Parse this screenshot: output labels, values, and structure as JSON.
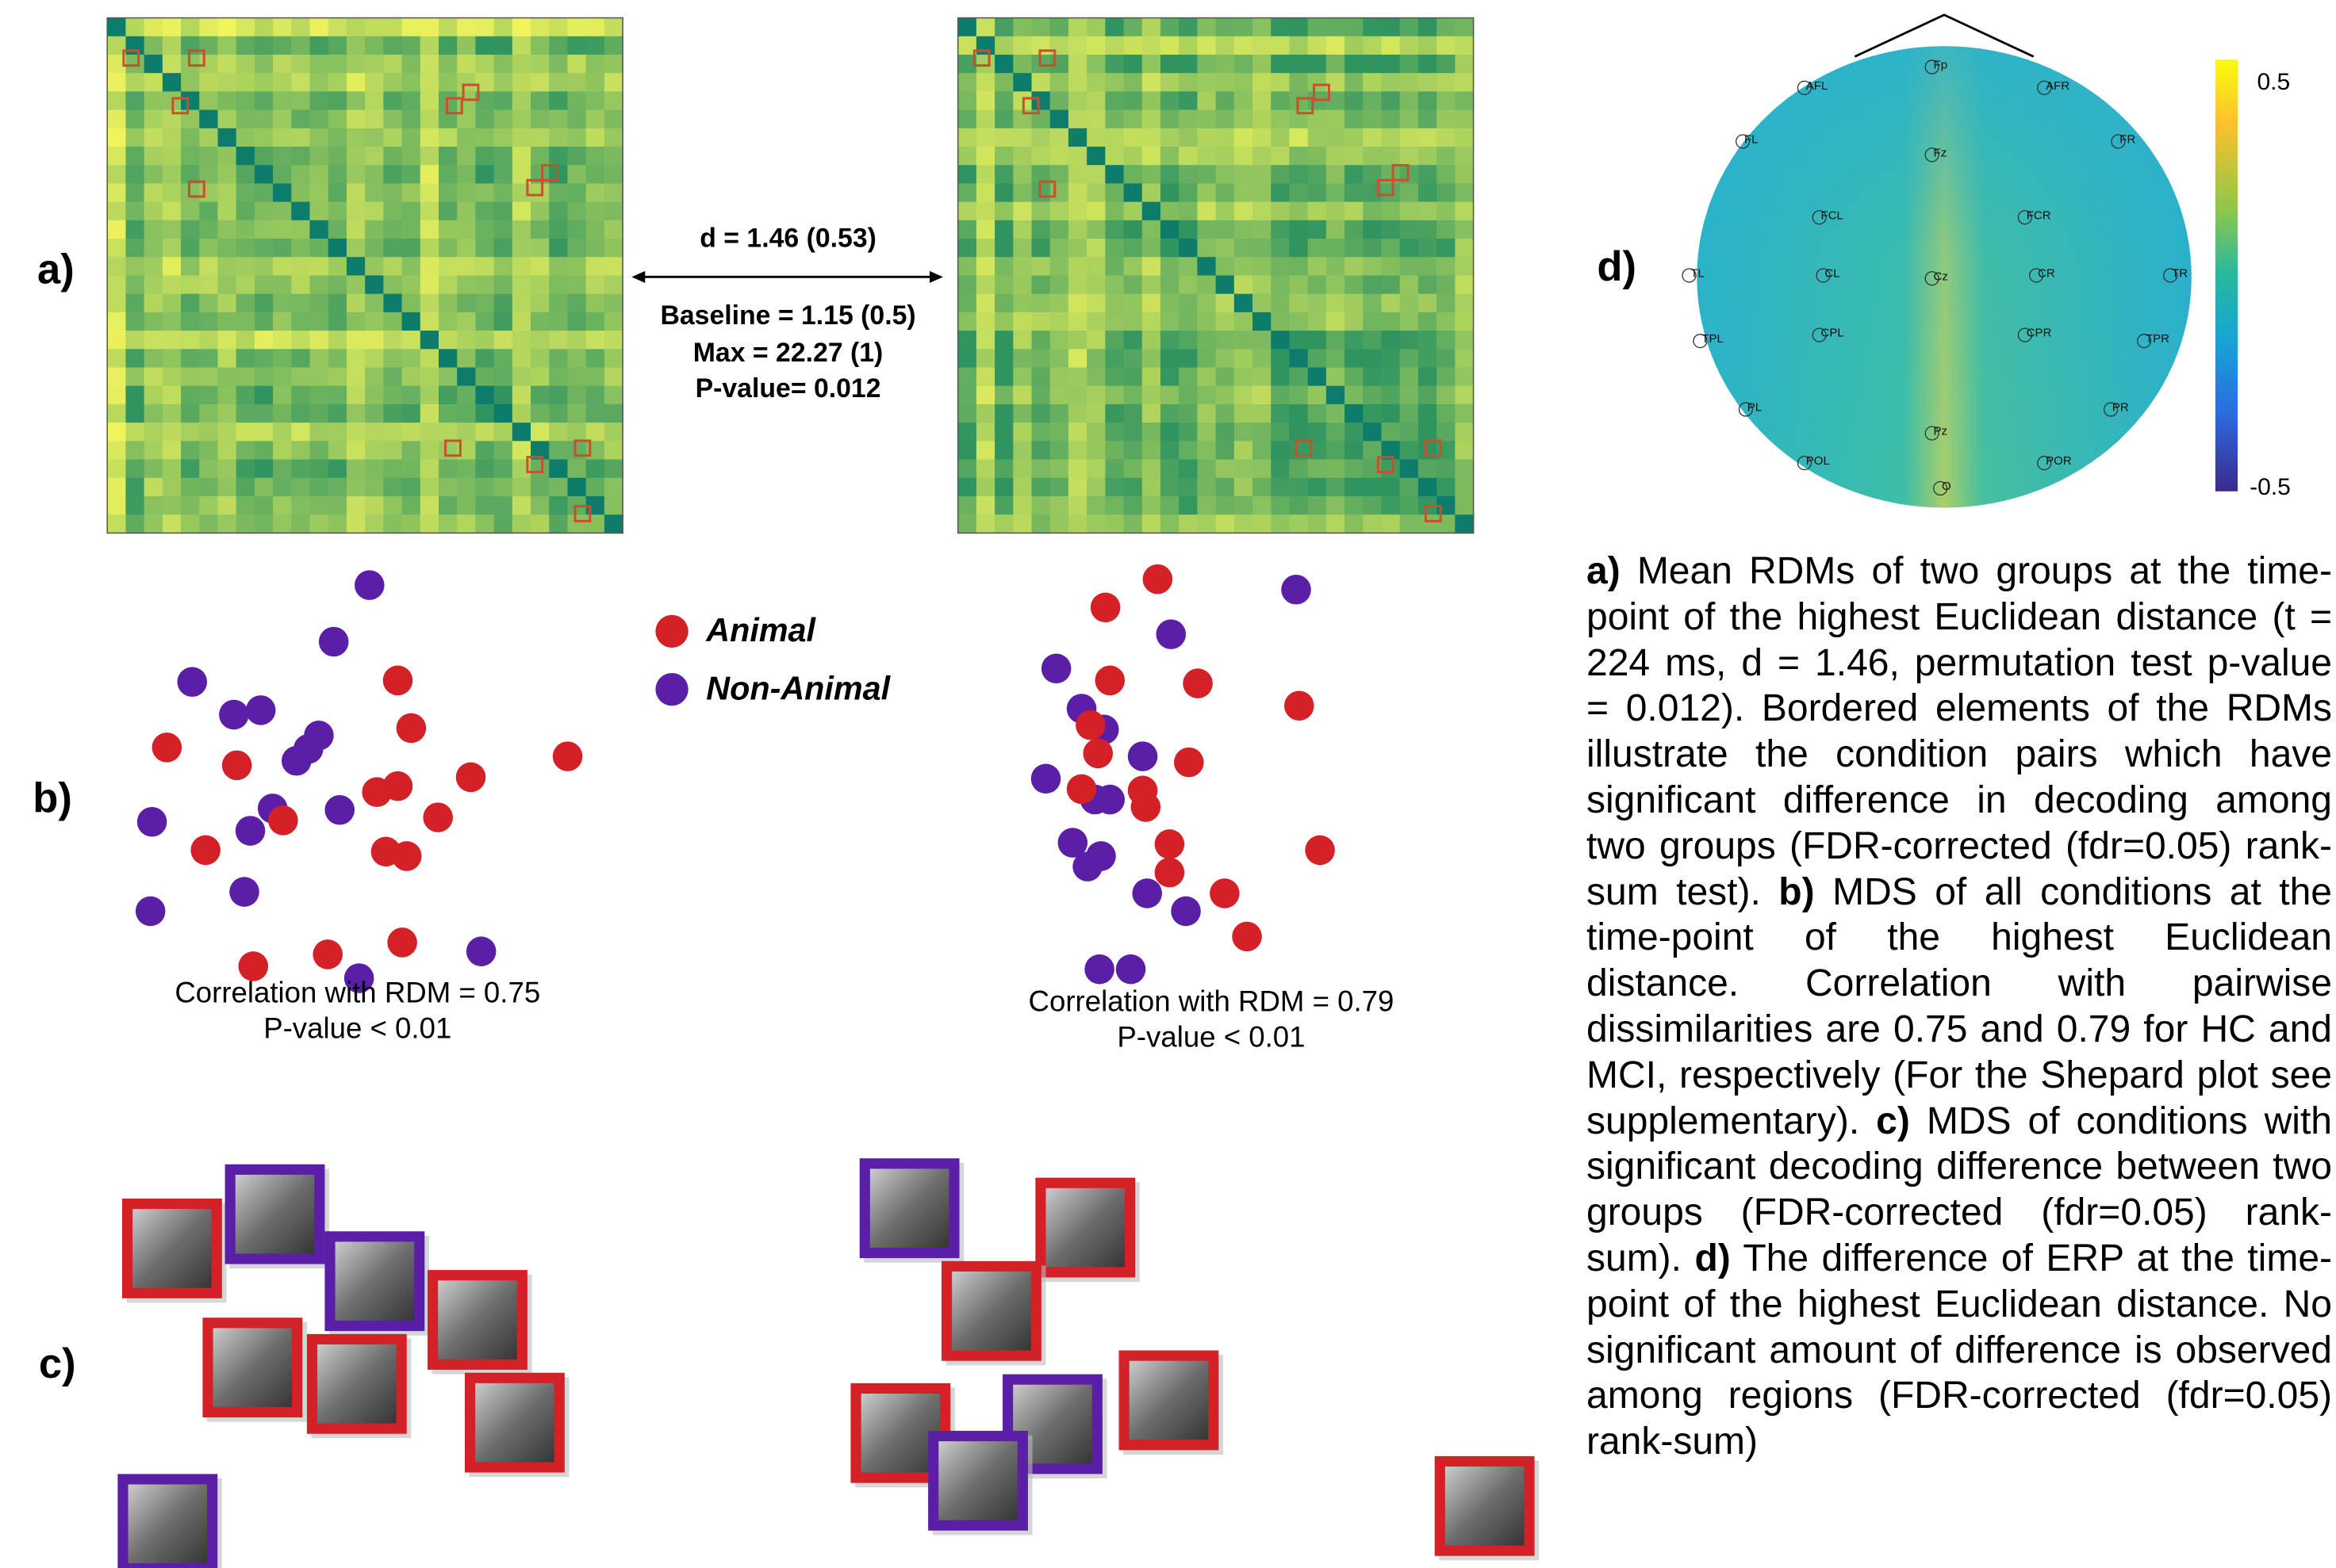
{
  "panel_labels": {
    "a": "a)",
    "b": "b)",
    "c": "c)",
    "d": "d)"
  },
  "rdm_comparison": {
    "d": "d = 1.46 (0.53)",
    "baseline": "Baseline = 1.15 (0.5)",
    "max": "Max = 22.27 (1)",
    "p_value": "P-value= 0.012"
  },
  "legend": [
    {
      "name": "Animal",
      "color": "#d42027"
    },
    {
      "name": "Non-Animal",
      "color": "#5a1fa6"
    }
  ],
  "mds": [
    {
      "correlation": "Correlation with RDM = 0.75",
      "p_value": "P-value < 0.01"
    },
    {
      "correlation": "Correlation with RDM = 0.79",
      "p_value": "P-value < 0.01"
    }
  ],
  "topomap": {
    "electrodes": [
      "AFL",
      "Fp",
      "AFR",
      "FL",
      "Fz",
      "FR",
      "FCL",
      "FCR",
      "TL",
      "CL",
      "Cz",
      "CR",
      "TR",
      "TPL",
      "CPL",
      "CPR",
      "TPR",
      "PL",
      "PR",
      "Pz",
      "POL",
      "POR",
      "O"
    ],
    "colorbar_ticks": [
      "0.5",
      "-0.5"
    ]
  },
  "caption": [
    {
      "label": "a)",
      "text": "Mean RDMs of two groups at the time-point of the highest Euclidean distance (t = 224 ms, d = 1.46, permutation test p-value = 0.012). Bordered elements of the RDMs illustrate the condition pairs which have significant difference in decoding among two groups (FDR-corrected (fdr=0.05) rank-sum test)."
    },
    {
      "label": "b)",
      "text": "MDS of all conditions at the time-point of the highest Euclidean distance. Correlation with pairwise dissimilarities are 0.75 and 0.79 for HC and MCI, respectively (For the Shepard plot see supplementary)."
    },
    {
      "label": "c)",
      "text": "MDS of conditions with significant decoding difference between two groups (FDR-corrected (fdr=0.05) rank-sum)."
    },
    {
      "label": "d)",
      "text": "The difference of ERP at the time-point of the highest Euclidean distance. No significant amount of difference is observed among regions (FDR-corrected (fdr=0.05) rank-sum)"
    }
  ]
}
